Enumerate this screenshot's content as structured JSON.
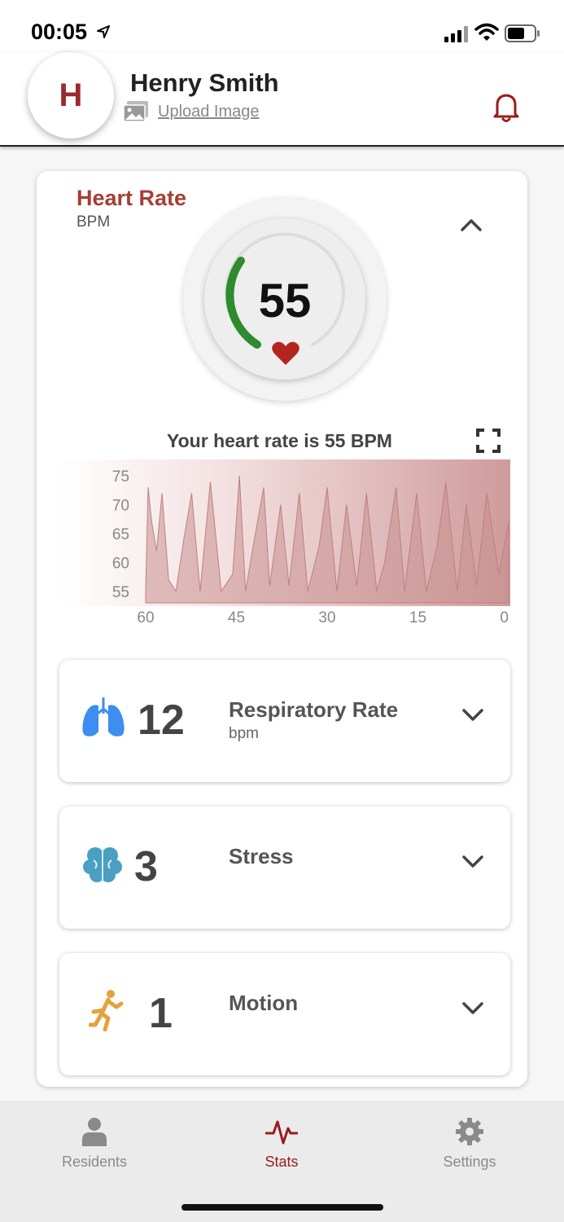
{
  "status_bar": {
    "time": "00:05"
  },
  "header": {
    "avatar_initial": "H",
    "user_name": "Henry Smith",
    "upload_label": "Upload Image"
  },
  "heart_rate": {
    "title": "Heart Rate",
    "unit": "BPM",
    "value": "55",
    "message": "Your heart rate is 55 BPM"
  },
  "chart_data": {
    "type": "area",
    "x_ticks": [
      "60",
      "45",
      "30",
      "15",
      "0"
    ],
    "y_ticks": [
      "75",
      "70",
      "65",
      "60",
      "55"
    ],
    "xlim": [
      60,
      0
    ],
    "ylim": [
      53,
      77
    ],
    "x": [
      60,
      59.6,
      59,
      58.2,
      57.3,
      56.2,
      55,
      53.7,
      52.4,
      51,
      49.3,
      47.5,
      45.6,
      44.5,
      43.5,
      42.2,
      40.5,
      39.5,
      37.7,
      36.3,
      34.6,
      33.2,
      31.3,
      30,
      28.4,
      26.8,
      25.1,
      23.5,
      21.8,
      20.5,
      18.6,
      17.2,
      15.2,
      13.6,
      11.8,
      10.4,
      8.5,
      7,
      5.3,
      3.6,
      1.6,
      0
    ],
    "y": [
      55,
      73,
      67,
      62,
      72,
      57,
      55,
      64,
      72,
      55,
      74,
      55,
      58,
      75,
      55,
      63,
      73,
      56,
      70,
      56,
      72,
      55,
      63,
      73,
      55,
      70,
      56,
      72,
      55,
      60,
      73,
      55,
      72,
      55,
      63,
      74,
      55,
      70,
      56,
      72,
      58,
      67
    ]
  },
  "metrics": [
    {
      "value": "12",
      "label": "Respiratory Rate",
      "unit": "bpm",
      "icon": "lungs-icon",
      "color": "#3d8ef0"
    },
    {
      "value": "3",
      "label": "Stress",
      "unit": "",
      "icon": "brain-icon",
      "color": "#4a9fc2"
    },
    {
      "value": "1",
      "label": "Motion",
      "unit": "",
      "icon": "running-icon",
      "color": "#e3a23b"
    }
  ],
  "tabs": [
    {
      "label": "Residents",
      "icon": "person-icon"
    },
    {
      "label": "Stats",
      "icon": "pulse-icon"
    },
    {
      "label": "Settings",
      "icon": "gear-icon"
    }
  ],
  "colors": {
    "accent": "#9b1c1c",
    "gauge_green": "#2e8b2e",
    "chart_fill": "#c98f8f"
  }
}
